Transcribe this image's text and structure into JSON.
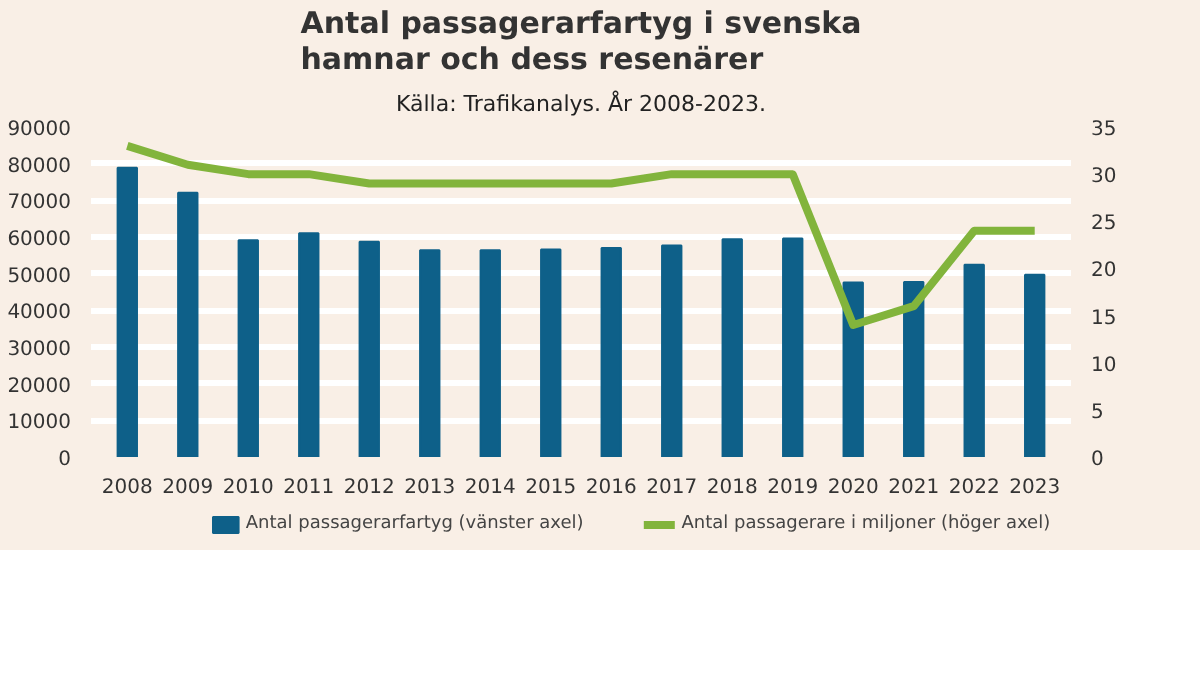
{
  "chart_data": {
    "type": "bar",
    "title": "Antal passagerarfartyg i svenska hamnar och dess resenärer",
    "subtitle": "Källa: Trafikanalys. År 2008-2023.",
    "categories": [
      "2008",
      "2009",
      "2010",
      "2011",
      "2012",
      "2013",
      "2014",
      "2015",
      "2016",
      "2017",
      "2018",
      "2019",
      "2020",
      "2021",
      "2022",
      "2023"
    ],
    "series": [
      {
        "name": "Antal passagerarfartyg (vänster axel)",
        "color": "#0e6089",
        "values": [
          78900,
          72100,
          59100,
          61000,
          58700,
          56400,
          56400,
          56600,
          57000,
          57700,
          59400,
          59600,
          47600,
          47700,
          52400,
          49700
        ]
      },
      {
        "name": "Antal passagerare i miljoner (höger axel)",
        "type": "line",
        "axis": "y2",
        "color": "#82b43c",
        "values": [
          33,
          31,
          30,
          30,
          29,
          29,
          29,
          29,
          29,
          30,
          30,
          30,
          14,
          16,
          24,
          24
        ]
      }
    ],
    "ylim": [
      0,
      90000
    ],
    "yticks": [
      0,
      10000,
      20000,
      30000,
      40000,
      50000,
      60000,
      70000,
      80000,
      90000
    ],
    "y2lim": [
      0,
      35
    ],
    "y2ticks": [
      0,
      5,
      10,
      15,
      20,
      25,
      30,
      35
    ],
    "grid": "y",
    "legend": "bottom",
    "marker": "none"
  }
}
